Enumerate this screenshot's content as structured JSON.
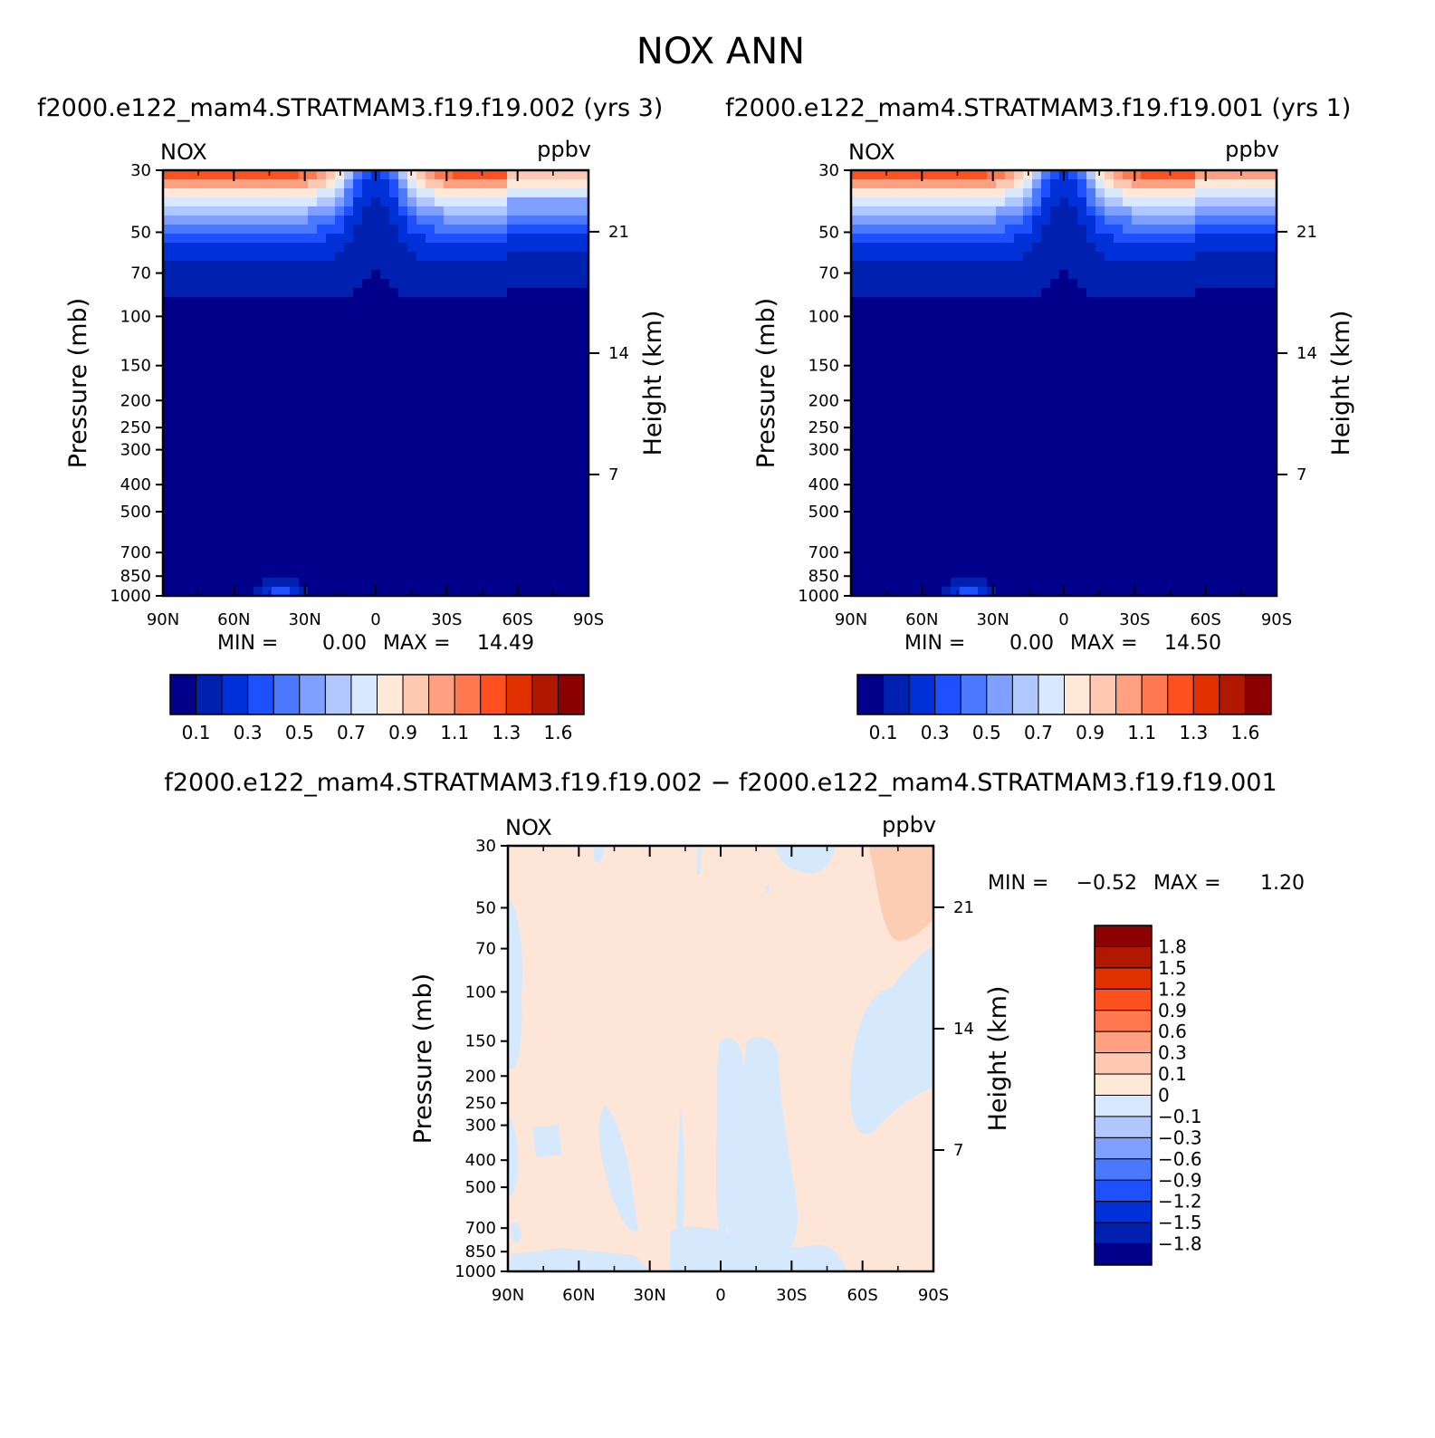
{
  "figure": {
    "title": "NOX ANN",
    "case1_title": "f2000.e122_mam4.STRATMAM3.f19.f19.002 (yrs 3)",
    "case2_title": "f2000.e122_mam4.STRATMAM3.f19.f19.001 (yrs 1)",
    "diff_title": "f2000.e122_mam4.STRATMAM3.f19.f19.002 − f2000.e122_mam4.STRATMAM3.f19.f19.001"
  },
  "colors": {
    "abs_levels": [
      "#00008b",
      "#0020b0",
      "#0030d8",
      "#1e50ff",
      "#4a78ff",
      "#80a0ff",
      "#b0c8ff",
      "#d8e8ff",
      "#ffe8d8",
      "#ffc8b0",
      "#ffa080",
      "#ff7850",
      "#ff5020",
      "#e03000",
      "#b01800",
      "#8b0000"
    ],
    "diff_levels": [
      "#00008b",
      "#0020b0",
      "#0030d8",
      "#1e50ff",
      "#4a78ff",
      "#80a0ff",
      "#b0c8ff",
      "#d8e8ff",
      "#ffe8d8",
      "#ffc8b0",
      "#ffa080",
      "#ff7850",
      "#ff5020",
      "#e03000",
      "#b01800",
      "#8b0000"
    ],
    "diff_pos": "#fde6d8",
    "diff_neg": "#d6e8fb",
    "diff_pos2": "#fccdb2"
  },
  "chart_data": [
    {
      "type": "contour",
      "name": "case1",
      "variable_label": "NOX",
      "units_label": "ppbv",
      "ylabel": "Pressure (mb)",
      "ylabel_right": "Height (km)",
      "x_ticks": [
        "90N",
        "60N",
        "30N",
        "0",
        "30S",
        "60S",
        "90S"
      ],
      "y_ticks": [
        "30",
        "50",
        "70",
        "100",
        "150",
        "200",
        "250",
        "300",
        "400",
        "500",
        "700",
        "850",
        "1000"
      ],
      "y_ticks_right": [
        "21",
        "14",
        "7"
      ],
      "stats": {
        "min_label": "MIN =",
        "min": "0.00",
        "max_label": "MAX =",
        "max": "14.49"
      },
      "colorbar_labels": [
        "0.1",
        "0.3",
        "0.5",
        "0.7",
        "0.9",
        "1.1",
        "1.3",
        "1.6"
      ],
      "xlim": [
        90,
        -90
      ],
      "ylim": [
        30,
        1000
      ]
    },
    {
      "type": "contour",
      "name": "case2",
      "variable_label": "NOX",
      "units_label": "ppbv",
      "ylabel": "Pressure (mb)",
      "ylabel_right": "Height (km)",
      "x_ticks": [
        "90N",
        "60N",
        "30N",
        "0",
        "30S",
        "60S",
        "90S"
      ],
      "y_ticks": [
        "30",
        "50",
        "70",
        "100",
        "150",
        "200",
        "250",
        "300",
        "400",
        "500",
        "700",
        "850",
        "1000"
      ],
      "y_ticks_right": [
        "21",
        "14",
        "7"
      ],
      "stats": {
        "min_label": "MIN =",
        "min": "0.00",
        "max_label": "MAX =",
        "max": "14.50"
      },
      "colorbar_labels": [
        "0.1",
        "0.3",
        "0.5",
        "0.7",
        "0.9",
        "1.1",
        "1.3",
        "1.6"
      ],
      "xlim": [
        90,
        -90
      ],
      "ylim": [
        30,
        1000
      ]
    },
    {
      "type": "contour",
      "name": "difference",
      "variable_label": "NOX",
      "units_label": "ppbv",
      "ylabel": "Pressure (mb)",
      "ylabel_right": "Height (km)",
      "x_ticks": [
        "90N",
        "60N",
        "30N",
        "0",
        "30S",
        "60S",
        "90S"
      ],
      "y_ticks": [
        "30",
        "50",
        "70",
        "100",
        "150",
        "200",
        "250",
        "300",
        "400",
        "500",
        "700",
        "850",
        "1000"
      ],
      "y_ticks_right": [
        "21",
        "14",
        "7"
      ],
      "stats": {
        "min_label": "MIN =",
        "min": "−0.52",
        "max_label": "MAX =",
        "max": "1.20"
      },
      "colorbar_labels": [
        "1.8",
        "1.5",
        "1.2",
        "0.9",
        "0.6",
        "0.3",
        "0.1",
        "0",
        "−0.1",
        "−0.3",
        "−0.6",
        "−0.9",
        "−1.2",
        "−1.5",
        "−1.8"
      ],
      "xlim": [
        90,
        -90
      ],
      "ylim": [
        30,
        1000
      ]
    }
  ]
}
